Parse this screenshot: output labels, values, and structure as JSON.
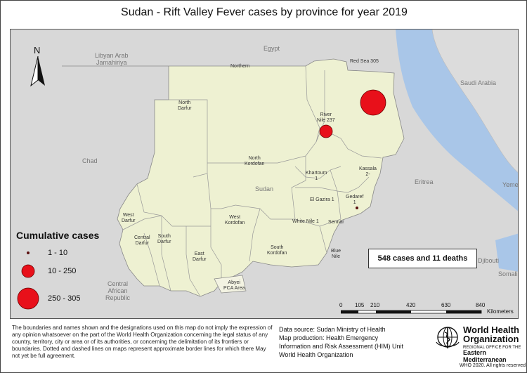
{
  "title": "Sudan - Rift Valley Fever cases by province for year 2019",
  "countries": {
    "egypt": "Egypt",
    "libya": "Libyan Arab\nJamahiriya",
    "saudi": "Saudi Arabia",
    "chad": "Chad",
    "eritrea": "Eritrea",
    "yemen": "Yemen",
    "djibouti": "Djibouti",
    "somalia": "Somalia",
    "car": "Central\nAfrican\nRepublic",
    "sudan": "Sudan"
  },
  "provinces": {
    "northern": "Northern",
    "red_sea": "Red Sea 305",
    "river_nile": "River\nNile 237",
    "north_darfur": "North\nDarfur",
    "north_kordofan": "North\nKordofan",
    "khartoum": "Khartoum\n1",
    "kassala": "Kassala\n2-",
    "gedaref": "Gedaref\n1",
    "el_gazira": "El Gazira 1",
    "white_nile": "White Nile 1",
    "sennar": "Sennar",
    "blue_nile": "Blue\nNile",
    "west_darfur": "West\nDarfur",
    "central_darfur": "Central\nDarfur",
    "south_darfur": "South\nDarfur",
    "east_darfur": "East\nDarfur",
    "west_kordofan": "West\nKordofan",
    "south_kordofan": "South\nKordofan",
    "abyei": "Abyei\nPCA Area"
  },
  "cases_by_province": [
    {
      "province": "Red Sea",
      "cases": 305
    },
    {
      "province": "River Nile",
      "cases": 237
    },
    {
      "province": "Kassala",
      "cases": 2
    },
    {
      "province": "Khartoum",
      "cases": 1
    },
    {
      "province": "Gedaref",
      "cases": 1
    },
    {
      "province": "El Gazira",
      "cases": 1
    },
    {
      "province": "White Nile",
      "cases": 1
    }
  ],
  "legend": {
    "title": "Cumulative cases",
    "items": [
      {
        "label": "1 - 10"
      },
      {
        "label": "10 - 250"
      },
      {
        "label": "250 - 305"
      }
    ],
    "symbol_color": "#e8101a"
  },
  "north_arrow": "N",
  "summary": "548 cases and 11 deaths",
  "scale": {
    "ticks": [
      "0",
      "105",
      "210",
      "420",
      "630",
      "840"
    ],
    "unit": "Kilometers"
  },
  "disclaimer": "The boundaries and names shown and the designations used on this map do not imply the expression of any opinion whatsoever on the part of the World Health Organization concerning the legal status of any country, territory, city or area or of its authorities, or concerning the delimitation of its frontiers or boundaries. Dotted and dashed lines on maps represent approximate border lines for which there May not yet be full agreement.",
  "source": {
    "line1": "Data source: Sudan Ministry of Health",
    "line2": "Map production: Health Emergency",
    "line3": "Information and Risk Assessment (HIM) Unit",
    "line4": "World Health Organization"
  },
  "who": {
    "name_line1": "World Health",
    "name_line2": "Organization",
    "regional_office": "REGIONAL OFFICE FOR THE",
    "region": "Eastern Mediterranean",
    "copyright": "WHO 2020. All rights reserved"
  },
  "colors": {
    "sudan_fill": "#eef1d2",
    "neighbor_fill": "#d9d9d9",
    "sea": "#a9c6e8",
    "case_dot": "#e8101a"
  }
}
